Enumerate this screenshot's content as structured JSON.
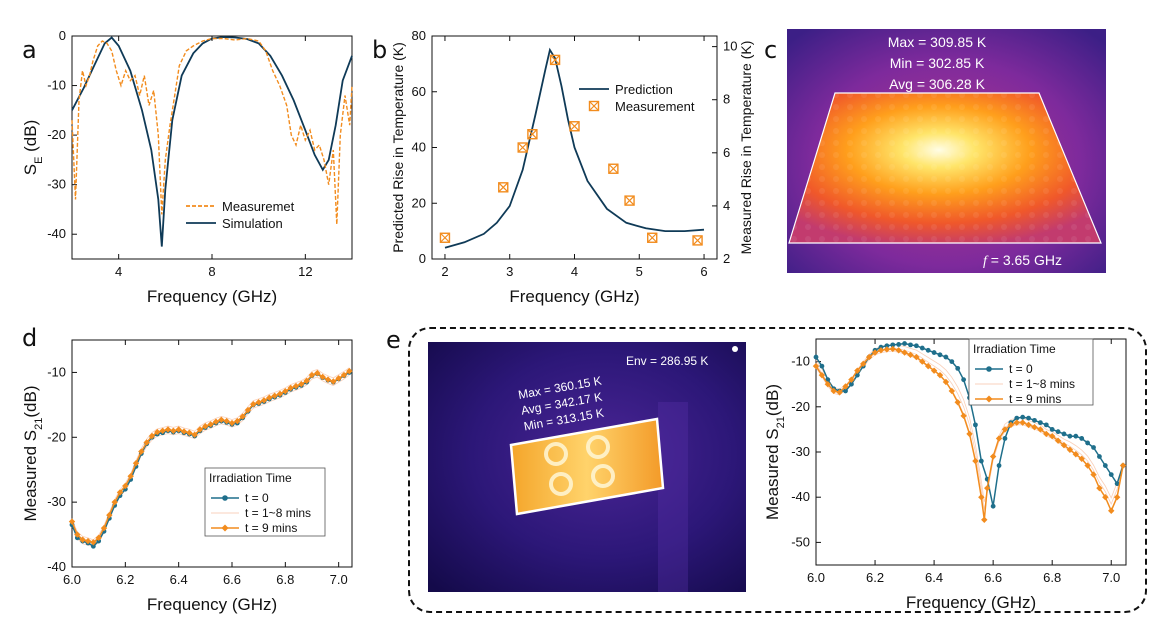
{
  "panel_letters": {
    "a": "a",
    "b": "b",
    "c": "c",
    "d": "d",
    "e": "e"
  },
  "colors": {
    "navy": "#0f3a57",
    "orange": "#f28c1e",
    "teal": "#1f6f8b",
    "light_orange": "#f6b27a"
  },
  "chart_data": [
    {
      "id": "a",
      "type": "line",
      "xlabel": "Frequency (GHz)",
      "ylabel": "S",
      "ylabel_sub": "E",
      "ylabel_suffix": " (dB)",
      "xlim": [
        2,
        14
      ],
      "ylim": [
        -45,
        0
      ],
      "xticks": [
        4,
        8,
        12
      ],
      "yticks": [
        0,
        -10,
        -20,
        -30,
        -40
      ],
      "legend": {
        "position": "bottom-right",
        "entries": [
          "Measuremet",
          "Simulation"
        ]
      },
      "series": [
        {
          "name": "Simulation",
          "style": "solid",
          "color": "#0f3a57",
          "x": [
            2,
            2.5,
            3,
            3.4,
            3.7,
            4.0,
            4.5,
            5.0,
            5.4,
            5.7,
            5.85,
            6.0,
            6.3,
            6.7,
            7.2,
            7.6,
            8.0,
            8.5,
            9.0,
            9.5,
            10,
            10.5,
            11,
            11.5,
            12,
            12.4,
            12.75,
            13.0,
            13.3,
            13.6,
            14
          ],
          "y": [
            -15,
            -10.5,
            -5.5,
            -1.5,
            -0.3,
            -2,
            -7,
            -15,
            -23,
            -33,
            -42.5,
            -31,
            -17,
            -8,
            -3.5,
            -1.5,
            -0.5,
            -0.2,
            -0.3,
            -0.6,
            -1.5,
            -4,
            -8,
            -13,
            -19,
            -24,
            -27,
            -25,
            -18,
            -9,
            -4
          ]
        },
        {
          "name": "Measuremet",
          "style": "dashed",
          "color": "#f28c1e",
          "x": [
            2,
            2.15,
            2.3,
            2.45,
            2.6,
            2.75,
            2.9,
            3.1,
            3.3,
            3.5,
            3.7,
            3.9,
            4.1,
            4.3,
            4.5,
            4.7,
            4.9,
            5.1,
            5.3,
            5.5,
            5.7,
            5.85,
            6.0,
            6.2,
            6.4,
            6.6,
            6.9,
            7.2,
            7.6,
            8.0,
            8.5,
            9.0,
            9.5,
            10.0,
            10.3,
            10.6,
            10.9,
            11.2,
            11.4,
            11.6,
            11.8,
            12.0,
            12.2,
            12.4,
            12.6,
            12.8,
            13.0,
            13.2,
            13.35,
            13.5,
            13.7,
            13.9,
            14
          ],
          "y": [
            -17,
            -33,
            -13,
            -7,
            -10,
            -8,
            -5,
            -2,
            -1,
            -1.5,
            -3,
            -7,
            -10,
            -7,
            -9,
            -8,
            -12,
            -8,
            -14,
            -11,
            -20,
            -36,
            -25,
            -18,
            -12,
            -6,
            -3,
            -2,
            -1,
            -0.5,
            -0.5,
            -0.8,
            -0.5,
            -1,
            -3,
            -7,
            -10,
            -14,
            -20,
            -22,
            -18,
            -21,
            -19,
            -23,
            -22,
            -25,
            -30,
            -23,
            -38,
            -20,
            -12,
            -18,
            -10
          ]
        }
      ]
    },
    {
      "id": "b",
      "type": "line+scatter",
      "xlabel": "Frequency (GHz)",
      "ylabel_left": "Predicted Rise in Temperature (K)",
      "ylabel_right": "Measured Rise in Temperature (K)",
      "xlim": [
        1.8,
        6.2
      ],
      "ylim_left": [
        0,
        80
      ],
      "ylim_right": [
        2,
        10.4
      ],
      "xticks": [
        2,
        3,
        4,
        5,
        6
      ],
      "yticks_left": [
        0,
        20,
        40,
        60,
        80
      ],
      "yticks_right": [
        2,
        4,
        6,
        8,
        10
      ],
      "legend": {
        "position": "top-right",
        "entries": [
          "Prediction",
          "Measurement"
        ]
      },
      "series": [
        {
          "name": "Prediction",
          "axis": "left",
          "style": "line",
          "color": "#0f3a57",
          "x": [
            2.0,
            2.3,
            2.6,
            2.8,
            3.0,
            3.2,
            3.4,
            3.55,
            3.62,
            3.7,
            3.8,
            3.9,
            4.0,
            4.2,
            4.5,
            4.8,
            5.1,
            5.4,
            5.7,
            6.0
          ],
          "y": [
            4,
            6,
            9,
            13,
            19,
            32,
            52,
            68,
            75,
            72,
            62,
            50,
            40,
            28,
            18,
            13,
            11,
            10,
            10,
            10.5
          ]
        },
        {
          "name": "Measurement",
          "axis": "right",
          "style": "marker",
          "color": "#f28c1e",
          "x": [
            2.0,
            2.9,
            3.2,
            3.35,
            3.7,
            4.0,
            4.6,
            4.85,
            5.2,
            5.9
          ],
          "y": [
            2.8,
            4.7,
            6.2,
            6.7,
            9.5,
            7.0,
            5.4,
            4.2,
            2.8,
            2.7
          ]
        }
      ]
    },
    {
      "id": "d",
      "type": "line",
      "xlabel": "Frequency (GHz)",
      "ylabel": "Measured S",
      "ylabel_sub": "21",
      "ylabel_suffix": "(dB)",
      "xlim": [
        6.0,
        7.05
      ],
      "ylim": [
        -40,
        -5
      ],
      "xticks": [
        6.0,
        6.2,
        6.4,
        6.6,
        6.8,
        7.0
      ],
      "xtick_labels": [
        "6.0",
        "6.2",
        "6.4",
        "6.6",
        "6.8",
        "7.0"
      ],
      "yticks": [
        -10,
        -20,
        -30,
        -40
      ],
      "legend": {
        "position": "bottom-right",
        "title": "Irradiation Time",
        "entries": [
          "t = 0",
          "t = 1~8 mins",
          "t = 9 mins"
        ]
      },
      "series": [
        {
          "name": "t = 0",
          "color": "#1f6f8b",
          "marker": "circle",
          "x": [
            6.0,
            6.02,
            6.04,
            6.06,
            6.08,
            6.1,
            6.12,
            6.14,
            6.16,
            6.18,
            6.2,
            6.22,
            6.24,
            6.26,
            6.28,
            6.3,
            6.32,
            6.34,
            6.36,
            6.38,
            6.4,
            6.42,
            6.44,
            6.46,
            6.48,
            6.5,
            6.52,
            6.54,
            6.56,
            6.58,
            6.6,
            6.62,
            6.64,
            6.66,
            6.68,
            6.7,
            6.72,
            6.74,
            6.76,
            6.78,
            6.8,
            6.82,
            6.84,
            6.86,
            6.88,
            6.9,
            6.92,
            6.94,
            6.96,
            6.98,
            7.0,
            7.02,
            7.04
          ],
          "y": [
            -33.5,
            -35.5,
            -36,
            -36.3,
            -36.8,
            -36,
            -34.5,
            -32.5,
            -30.5,
            -29,
            -28,
            -26.5,
            -24.5,
            -22.5,
            -21,
            -20,
            -19.5,
            -19.3,
            -19,
            -19.2,
            -19,
            -19.3,
            -19.5,
            -19.8,
            -19,
            -18.5,
            -18.2,
            -17.8,
            -17.5,
            -17.7,
            -18,
            -17.8,
            -17,
            -16,
            -15,
            -14.8,
            -14.5,
            -14.1,
            -13.8,
            -13.5,
            -13.1,
            -12.6,
            -12.3,
            -12,
            -11.5,
            -10.5,
            -10.2,
            -10.8,
            -11.2,
            -11.5,
            -11,
            -10.5,
            -10
          ]
        },
        {
          "name": "t = 9 mins",
          "color": "#f28c1e",
          "marker": "diamond",
          "x": [
            6.0,
            6.02,
            6.04,
            6.06,
            6.08,
            6.1,
            6.12,
            6.14,
            6.16,
            6.18,
            6.2,
            6.22,
            6.24,
            6.26,
            6.28,
            6.3,
            6.32,
            6.34,
            6.36,
            6.38,
            6.4,
            6.42,
            6.44,
            6.46,
            6.48,
            6.5,
            6.52,
            6.54,
            6.56,
            6.58,
            6.6,
            6.62,
            6.64,
            6.66,
            6.68,
            6.7,
            6.72,
            6.74,
            6.76,
            6.78,
            6.8,
            6.82,
            6.84,
            6.86,
            6.88,
            6.9,
            6.92,
            6.94,
            6.96,
            6.98,
            7.0,
            7.02,
            7.04
          ],
          "y": [
            -33,
            -35,
            -35.8,
            -36,
            -36.2,
            -35.5,
            -34,
            -32,
            -30,
            -28.5,
            -27.5,
            -26,
            -24,
            -22.2,
            -20.8,
            -19.8,
            -19.2,
            -19,
            -18.8,
            -19,
            -18.8,
            -19.1,
            -19.3,
            -19.6,
            -18.8,
            -18.3,
            -18,
            -17.6,
            -17.3,
            -17.5,
            -17.8,
            -17.5,
            -16.8,
            -15.8,
            -14.9,
            -14.6,
            -14.3,
            -13.9,
            -13.6,
            -13.3,
            -12.9,
            -12.4,
            -12.1,
            -11.8,
            -11.3,
            -10.4,
            -10.1,
            -10.7,
            -11.1,
            -11.4,
            -10.9,
            -10.4,
            -9.8
          ]
        }
      ]
    },
    {
      "id": "e_plot",
      "type": "line",
      "xlabel": "Frequency (GHz)",
      "ylabel": "Measured S",
      "ylabel_sub": "21",
      "ylabel_suffix": "(dB)",
      "xlim": [
        6.0,
        7.05
      ],
      "ylim": [
        -55,
        -5
      ],
      "xticks": [
        6.0,
        6.2,
        6.4,
        6.6,
        6.8,
        7.0
      ],
      "xtick_labels": [
        "6.0",
        "6.2",
        "6.4",
        "6.6",
        "6.8",
        "7.0"
      ],
      "yticks": [
        -10,
        -20,
        -30,
        -40,
        -50
      ],
      "legend": {
        "position": "top-right",
        "title": "Irradiation Time",
        "entries": [
          "t = 0",
          "t = 1~8 mins",
          "t = 9 mins"
        ]
      },
      "series": [
        {
          "name": "t = 0",
          "color": "#1f6f8b",
          "marker": "circle",
          "x": [
            6.0,
            6.02,
            6.04,
            6.06,
            6.08,
            6.1,
            6.12,
            6.14,
            6.16,
            6.18,
            6.2,
            6.22,
            6.24,
            6.26,
            6.28,
            6.3,
            6.32,
            6.34,
            6.36,
            6.38,
            6.4,
            6.42,
            6.44,
            6.46,
            6.48,
            6.5,
            6.52,
            6.54,
            6.56,
            6.58,
            6.6,
            6.62,
            6.64,
            6.66,
            6.68,
            6.7,
            6.72,
            6.74,
            6.76,
            6.78,
            6.8,
            6.82,
            6.84,
            6.86,
            6.88,
            6.9,
            6.92,
            6.94,
            6.96,
            6.98,
            7.0,
            7.02,
            7.04
          ],
          "y": [
            -9,
            -11,
            -14,
            -16,
            -16.5,
            -16.5,
            -15,
            -13,
            -11,
            -9,
            -7.5,
            -6.8,
            -6.5,
            -6.3,
            -6.2,
            -6,
            -6.3,
            -6.5,
            -7,
            -7.5,
            -8,
            -8.5,
            -9,
            -10,
            -11.5,
            -14,
            -18,
            -24,
            -32,
            -36,
            -42,
            -33,
            -27,
            -23.5,
            -22.5,
            -22.3,
            -22.5,
            -23,
            -23.5,
            -24,
            -25,
            -25.5,
            -26,
            -26.5,
            -26.5,
            -27,
            -28,
            -29,
            -31,
            -33,
            -35,
            -37,
            -33
          ]
        },
        {
          "name": "t = 9 mins",
          "color": "#f28c1e",
          "marker": "diamond",
          "x": [
            6.0,
            6.02,
            6.04,
            6.06,
            6.08,
            6.1,
            6.12,
            6.14,
            6.16,
            6.18,
            6.2,
            6.22,
            6.24,
            6.26,
            6.28,
            6.3,
            6.32,
            6.34,
            6.36,
            6.38,
            6.4,
            6.42,
            6.44,
            6.46,
            6.48,
            6.5,
            6.52,
            6.54,
            6.56,
            6.57,
            6.58,
            6.6,
            6.62,
            6.64,
            6.66,
            6.68,
            6.7,
            6.72,
            6.74,
            6.76,
            6.78,
            6.8,
            6.82,
            6.84,
            6.86,
            6.88,
            6.9,
            6.92,
            6.94,
            6.96,
            6.98,
            7.0,
            7.02,
            7.04
          ],
          "y": [
            -11,
            -13,
            -15,
            -16.5,
            -16.8,
            -15.5,
            -14,
            -12,
            -10.5,
            -9,
            -8,
            -7.5,
            -7.3,
            -7.2,
            -7.5,
            -8,
            -8.5,
            -9,
            -10,
            -11,
            -12,
            -13,
            -14.5,
            -16.5,
            -19,
            -22,
            -26,
            -32,
            -40,
            -45,
            -38,
            -31,
            -27,
            -25,
            -24,
            -23.5,
            -23.5,
            -24,
            -24.5,
            -25,
            -26,
            -26.5,
            -27.5,
            -28.5,
            -29.5,
            -30.5,
            -31.5,
            -33,
            -35,
            -38,
            -40,
            -43,
            -40,
            -33
          ]
        }
      ]
    }
  ],
  "thermal_c": {
    "max": "Max = 309.85 K",
    "min": "Min = 302.85 K",
    "avg": "Avg = 306.28 K",
    "freq_symbol": "f",
    "freq_value": " = 3.65 GHz"
  },
  "thermal_e": {
    "env": "Env = 286.95 K",
    "max": "Max = 360.15 K",
    "avg": "Avg = 342.17 K",
    "min": "Min = 313.15 K"
  }
}
